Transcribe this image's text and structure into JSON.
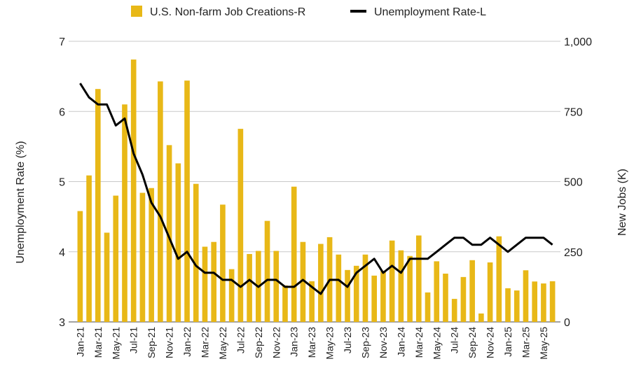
{
  "chart_data": {
    "type": "bar+line",
    "legend": {
      "bars_label": "U.S. Non-farm Job Creations-R",
      "line_label": "Unemployment Rate-L",
      "placement": "top"
    },
    "left_axis": {
      "label": "Unemployment Rate (%)",
      "range": [
        3,
        7
      ],
      "ticks": [
        "3",
        "4",
        "5",
        "6",
        "7"
      ]
    },
    "right_axis": {
      "label": "New Jobs (K)",
      "range": [
        0,
        1000
      ],
      "ticks": [
        "0",
        "250",
        "500",
        "750",
        "1,000"
      ]
    },
    "x_tick_labels": [
      "Jan-21",
      "Mar-21",
      "May-21",
      "Jul-21",
      "Sep-21",
      "Nov-21",
      "Jan-22",
      "Mar-22",
      "May-22",
      "Jul-22",
      "Sep-22",
      "Nov-22",
      "Jan-23",
      "Mar-23",
      "May-23",
      "Jul-23",
      "Sep-23",
      "Nov-23",
      "Jan-24",
      "Mar-24",
      "May-24",
      "Jul-24",
      "Sep-24",
      "Nov-24",
      "Jan-25",
      "Mar-25",
      "May-25"
    ],
    "months": [
      "Jan-21",
      "Feb-21",
      "Mar-21",
      "Apr-21",
      "May-21",
      "Jun-21",
      "Jul-21",
      "Aug-21",
      "Sep-21",
      "Oct-21",
      "Nov-21",
      "Dec-21",
      "Jan-22",
      "Feb-22",
      "Mar-22",
      "Apr-22",
      "May-22",
      "Jun-22",
      "Jul-22",
      "Aug-22",
      "Sep-22",
      "Oct-22",
      "Nov-22",
      "Dec-22",
      "Jan-23",
      "Feb-23",
      "Mar-23",
      "Apr-23",
      "May-23",
      "Jun-23",
      "Jul-23",
      "Aug-23",
      "Sep-23",
      "Oct-23",
      "Nov-23",
      "Dec-23",
      "Jan-24",
      "Feb-24",
      "Mar-24",
      "Apr-24",
      "May-24",
      "Jun-24",
      "Jul-24",
      "Aug-24",
      "Sep-24",
      "Oct-24",
      "Nov-24",
      "Dec-24",
      "Jan-25",
      "Feb-25",
      "Mar-25",
      "Apr-25",
      "May-25",
      "Jun-25"
    ],
    "series": [
      {
        "name": "U.S. Non-farm Job Creations-R",
        "type": "bar",
        "axis": "right",
        "color": "#E8B817",
        "values": [
          395,
          522,
          830,
          318,
          450,
          775,
          935,
          460,
          477,
          857,
          630,
          565,
          860,
          492,
          268,
          285,
          418,
          188,
          688,
          242,
          253,
          360,
          253,
          130,
          482,
          285,
          145,
          278,
          302,
          240,
          185,
          200,
          240,
          165,
          182,
          290,
          255,
          235,
          308,
          105,
          216,
          172,
          82,
          160,
          220,
          30,
          212,
          305,
          120,
          112,
          184,
          144,
          137,
          145
        ]
      },
      {
        "name": "Unemployment Rate-L",
        "type": "line",
        "axis": "left",
        "color": "#000000",
        "values": [
          6.4,
          6.2,
          6.1,
          6.1,
          5.8,
          5.9,
          5.4,
          5.1,
          4.7,
          4.5,
          4.2,
          3.9,
          4.0,
          3.8,
          3.7,
          3.7,
          3.6,
          3.6,
          3.5,
          3.6,
          3.5,
          3.6,
          3.6,
          3.5,
          3.5,
          3.6,
          3.5,
          3.4,
          3.6,
          3.6,
          3.5,
          3.7,
          3.8,
          3.9,
          3.7,
          3.8,
          3.7,
          3.9,
          3.9,
          3.9,
          4.0,
          4.1,
          4.2,
          4.2,
          4.1,
          4.1,
          4.2,
          4.1,
          4.0,
          4.1,
          4.2,
          4.2,
          4.2,
          4.1
        ]
      }
    ]
  }
}
